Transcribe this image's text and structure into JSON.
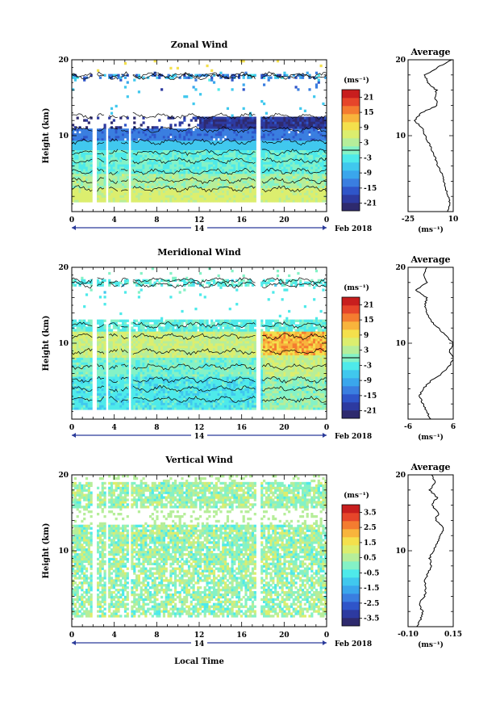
{
  "figure": {
    "date_label": "Feb 2018",
    "day_label": "14",
    "xlabel": "Local Time",
    "x_ticks": [
      "0",
      "4",
      "8",
      "12",
      "16",
      "20",
      "0"
    ],
    "ylabel": "Height (km)",
    "y_ticks": [
      "10",
      "20"
    ],
    "colorbar_unit": "(ms⁻¹)",
    "profile_unit": "(ms⁻¹)",
    "profile_title": "Average"
  },
  "colors": {
    "palette": [
      "#2e2a6e",
      "#2d3aa0",
      "#2f55c9",
      "#3a7ee0",
      "#3aa6ec",
      "#40c8ee",
      "#4eeaea",
      "#84f2c6",
      "#b6ee9a",
      "#dcee6e",
      "#f4e04c",
      "#f8b43c",
      "#f47c30",
      "#e6452a",
      "#c81e1e"
    ],
    "gap_white": "#ffffff",
    "line": "#000000"
  },
  "chart_data": [
    {
      "id": "zonal",
      "type": "heatmap",
      "title": "Zonal Wind",
      "x_unit": "local time (h), 14 Feb 2018",
      "xlim": [
        0,
        24
      ],
      "ylim": [
        0,
        20
      ],
      "data_gaps_hours": [
        [
          2.0,
          2.4
        ],
        [
          3.2,
          3.4
        ],
        [
          4.4,
          4.6
        ],
        [
          5.3,
          5.6
        ],
        [
          17.4,
          17.8
        ]
      ],
      "colorbar": {
        "vmin": -24,
        "vmax": 24,
        "ticks": [
          21,
          15,
          9,
          3,
          -3,
          -9,
          -15,
          -21
        ]
      },
      "bands": [
        {
          "from": 0,
          "to": 2,
          "value": -3
        },
        {
          "from": 2,
          "to": 4,
          "value": 0
        },
        {
          "from": 4,
          "to": 6,
          "value": 4
        },
        {
          "from": 6,
          "to": 8,
          "value": 1
        },
        {
          "from": 8,
          "to": 9.5,
          "value": -7
        },
        {
          "from": 9.5,
          "to": 11,
          "value": -13
        },
        {
          "from": 11,
          "to": 12.5,
          "value": -19
        },
        {
          "from": 18,
          "to": 19,
          "value": -11
        }
      ],
      "profile": {
        "xlim": [
          -25,
          10
        ],
        "xticks": [
          -25,
          10
        ],
        "points": [
          [
            5,
            0
          ],
          [
            8,
            1
          ],
          [
            6,
            2
          ],
          [
            4,
            3
          ],
          [
            3,
            4
          ],
          [
            1,
            5
          ],
          [
            -2,
            6
          ],
          [
            -4,
            7
          ],
          [
            -6,
            8
          ],
          [
            -9,
            9
          ],
          [
            -12,
            10
          ],
          [
            -14,
            11
          ],
          [
            -20,
            12
          ],
          [
            -15,
            13
          ],
          [
            -2,
            14
          ],
          [
            -4,
            15
          ],
          [
            -3,
            16
          ],
          [
            -10,
            17
          ],
          [
            -12,
            18
          ],
          [
            -2,
            19
          ],
          [
            9,
            20
          ]
        ]
      }
    },
    {
      "id": "meridional",
      "type": "heatmap",
      "title": "Meridional Wind",
      "x_unit": "local time (h), 14 Feb 2018",
      "xlim": [
        0,
        24
      ],
      "ylim": [
        0,
        20
      ],
      "data_gaps_hours": [
        [
          2.0,
          2.4
        ],
        [
          3.2,
          3.4
        ],
        [
          4.4,
          4.6
        ],
        [
          5.3,
          5.6
        ],
        [
          17.4,
          17.8
        ]
      ],
      "colorbar": {
        "vmin": -24,
        "vmax": 24,
        "ticks": [
          21,
          15,
          9,
          3,
          -3,
          -9,
          -15,
          -21
        ]
      },
      "bands": [
        {
          "from": 0,
          "to": 2.5,
          "value": -5
        },
        {
          "from": 2.5,
          "to": 4.5,
          "value": -2
        },
        {
          "from": 4.5,
          "to": 6,
          "value": -4
        },
        {
          "from": 6,
          "to": 8,
          "value": 0
        },
        {
          "from": 8,
          "to": 9,
          "value": 4
        },
        {
          "from": 9,
          "to": 11,
          "value": 7
        },
        {
          "from": 11,
          "to": 12.5,
          "value": -1
        },
        {
          "from": 12.5,
          "to": 13.5,
          "value": -2
        },
        {
          "from": 13.5,
          "to": 16,
          "value": -6
        },
        {
          "from": 18,
          "to": 19,
          "value": -4
        }
      ],
      "profile": {
        "xlim": [
          -6,
          6
        ],
        "xticks": [
          -6,
          6
        ],
        "points": [
          [
            0,
            0
          ],
          [
            -1,
            1
          ],
          [
            -2,
            2
          ],
          [
            -3,
            3
          ],
          [
            -2,
            4
          ],
          [
            0,
            5
          ],
          [
            3,
            6
          ],
          [
            5,
            7
          ],
          [
            6,
            8
          ],
          [
            5,
            9
          ],
          [
            6,
            10
          ],
          [
            4,
            11
          ],
          [
            2,
            12
          ],
          [
            0,
            13
          ],
          [
            -1,
            14
          ],
          [
            -1.5,
            15
          ],
          [
            -1,
            16
          ],
          [
            -4,
            17
          ],
          [
            -1,
            18
          ],
          [
            -2,
            19
          ],
          [
            -1,
            20
          ]
        ]
      }
    },
    {
      "id": "vertical",
      "type": "heatmap",
      "title": "Vertical Wind",
      "x_unit": "local time (h), 14 Feb 2018",
      "xlim": [
        0,
        24
      ],
      "ylim": [
        0,
        20
      ],
      "data_gaps_hours": [
        [
          2.0,
          2.4
        ],
        [
          3.2,
          3.4
        ],
        [
          4.4,
          4.6
        ],
        [
          5.3,
          5.6
        ],
        [
          17.4,
          17.8
        ]
      ],
      "colorbar": {
        "vmin": -4,
        "vmax": 4,
        "ticks": [
          3.5,
          2.5,
          1.5,
          0.5,
          -0.5,
          -1.5,
          -2.5,
          -3.5
        ]
      },
      "bands": [
        {
          "from": 0,
          "to": 13,
          "value": 0.1
        },
        {
          "from": 13,
          "to": 15.5,
          "value": 0.2
        },
        {
          "from": 15.5,
          "to": 19,
          "value": 0.3
        }
      ],
      "profile": {
        "xlim": [
          -0.1,
          0.15
        ],
        "xticks": [
          -0.1,
          0.15
        ],
        "xtick_labels": [
          "-0.10",
          "0.15"
        ],
        "points": [
          [
            -0.05,
            0
          ],
          [
            -0.03,
            1
          ],
          [
            -0.02,
            2
          ],
          [
            -0.04,
            3
          ],
          [
            -0.01,
            4
          ],
          [
            0.0,
            5
          ],
          [
            -0.01,
            6
          ],
          [
            0.01,
            7
          ],
          [
            0.03,
            8
          ],
          [
            0.02,
            9
          ],
          [
            0.04,
            10
          ],
          [
            0.06,
            11
          ],
          [
            0.08,
            12
          ],
          [
            0.1,
            13
          ],
          [
            0.05,
            14
          ],
          [
            0.07,
            15
          ],
          [
            0.03,
            16
          ],
          [
            0.06,
            17
          ],
          [
            0.02,
            18
          ],
          [
            0.05,
            19
          ],
          [
            0.03,
            20
          ]
        ]
      }
    }
  ]
}
